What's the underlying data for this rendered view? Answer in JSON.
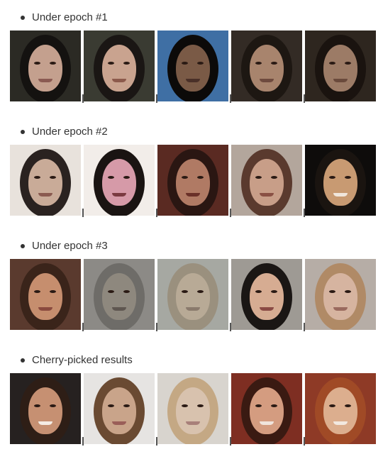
{
  "sections": [
    {
      "label": "Under epoch #1",
      "images": [
        {
          "bg": "#2b2a24",
          "hair": "#141210",
          "skin": "#c4a08e",
          "mouth": "#8a5a52"
        },
        {
          "bg": "#3a3b32",
          "hair": "#1a1614",
          "skin": "#c9a38f",
          "mouth": "#8c5a4c"
        },
        {
          "bg": "#3f6fa4",
          "hair": "#0c0a09",
          "skin": "#7a5a46",
          "mouth": "#4a3028"
        },
        {
          "bg": "#332b25",
          "hair": "#1d1712",
          "skin": "#a8846d",
          "mouth": "#6e4a3e"
        },
        {
          "bg": "#2e261f",
          "hair": "#1a130f",
          "skin": "#9c7b66",
          "mouth": "#6a4a3c"
        }
      ]
    },
    {
      "label": "Under epoch #2",
      "images": [
        {
          "bg": "#e8e2dc",
          "hair": "#2a2220",
          "skin": "#c9ab98",
          "mouth": "#8a5a50"
        },
        {
          "bg": "#f2ede9",
          "hair": "#1a1412",
          "skin": "#d69aa8",
          "mouth": "#7a3a40"
        },
        {
          "bg": "#5a2a22",
          "hair": "#2a1612",
          "skin": "#b07a64",
          "mouth": "#6a3028"
        },
        {
          "bg": "#b3a69c",
          "hair": "#5a3a2e",
          "skin": "#c89e88",
          "mouth": "#8a5044"
        },
        {
          "bg": "#0e0c0b",
          "hair": "#1a1410",
          "skin": "#c89a72",
          "mouth": "#f0e6dc"
        }
      ]
    },
    {
      "label": "Under epoch #3",
      "images": [
        {
          "bg": "#5a3a2e",
          "hair": "#3a241a",
          "skin": "#c68e6e",
          "mouth": "#8a4a3e"
        },
        {
          "bg": "#8c8a86",
          "hair": "#6e6c68",
          "skin": "#8e887e",
          "mouth": "#5e5650"
        },
        {
          "bg": "#a6a8a2",
          "hair": "#9a907e",
          "skin": "#b8aa96",
          "mouth": "#8a7a6c"
        },
        {
          "bg": "#9e9a94",
          "hair": "#1a1614",
          "skin": "#d6ac92",
          "mouth": "#8a4a44"
        },
        {
          "bg": "#b6ada6",
          "hair": "#b08a66",
          "skin": "#d6b4a0",
          "mouth": "#9a6a5e"
        }
      ]
    },
    {
      "label": "Cherry-picked results",
      "images": [
        {
          "bg": "#262120",
          "hair": "#2e1e16",
          "skin": "#c69072",
          "mouth": "#f4ece4"
        },
        {
          "bg": "#e6e4e2",
          "hair": "#6a4a32",
          "skin": "#c9a48a",
          "mouth": "#9a5e58"
        },
        {
          "bg": "#d8d4ce",
          "hair": "#c4a884",
          "skin": "#d8c2ae",
          "mouth": "#a8807a"
        },
        {
          "bg": "#7e2e22",
          "hair": "#3a1a12",
          "skin": "#d49c80",
          "mouth": "#f0e4dc"
        },
        {
          "bg": "#8e3a26",
          "hair": "#a04a26",
          "skin": "#dcae8e",
          "mouth": "#f2e8e0"
        }
      ]
    }
  ]
}
